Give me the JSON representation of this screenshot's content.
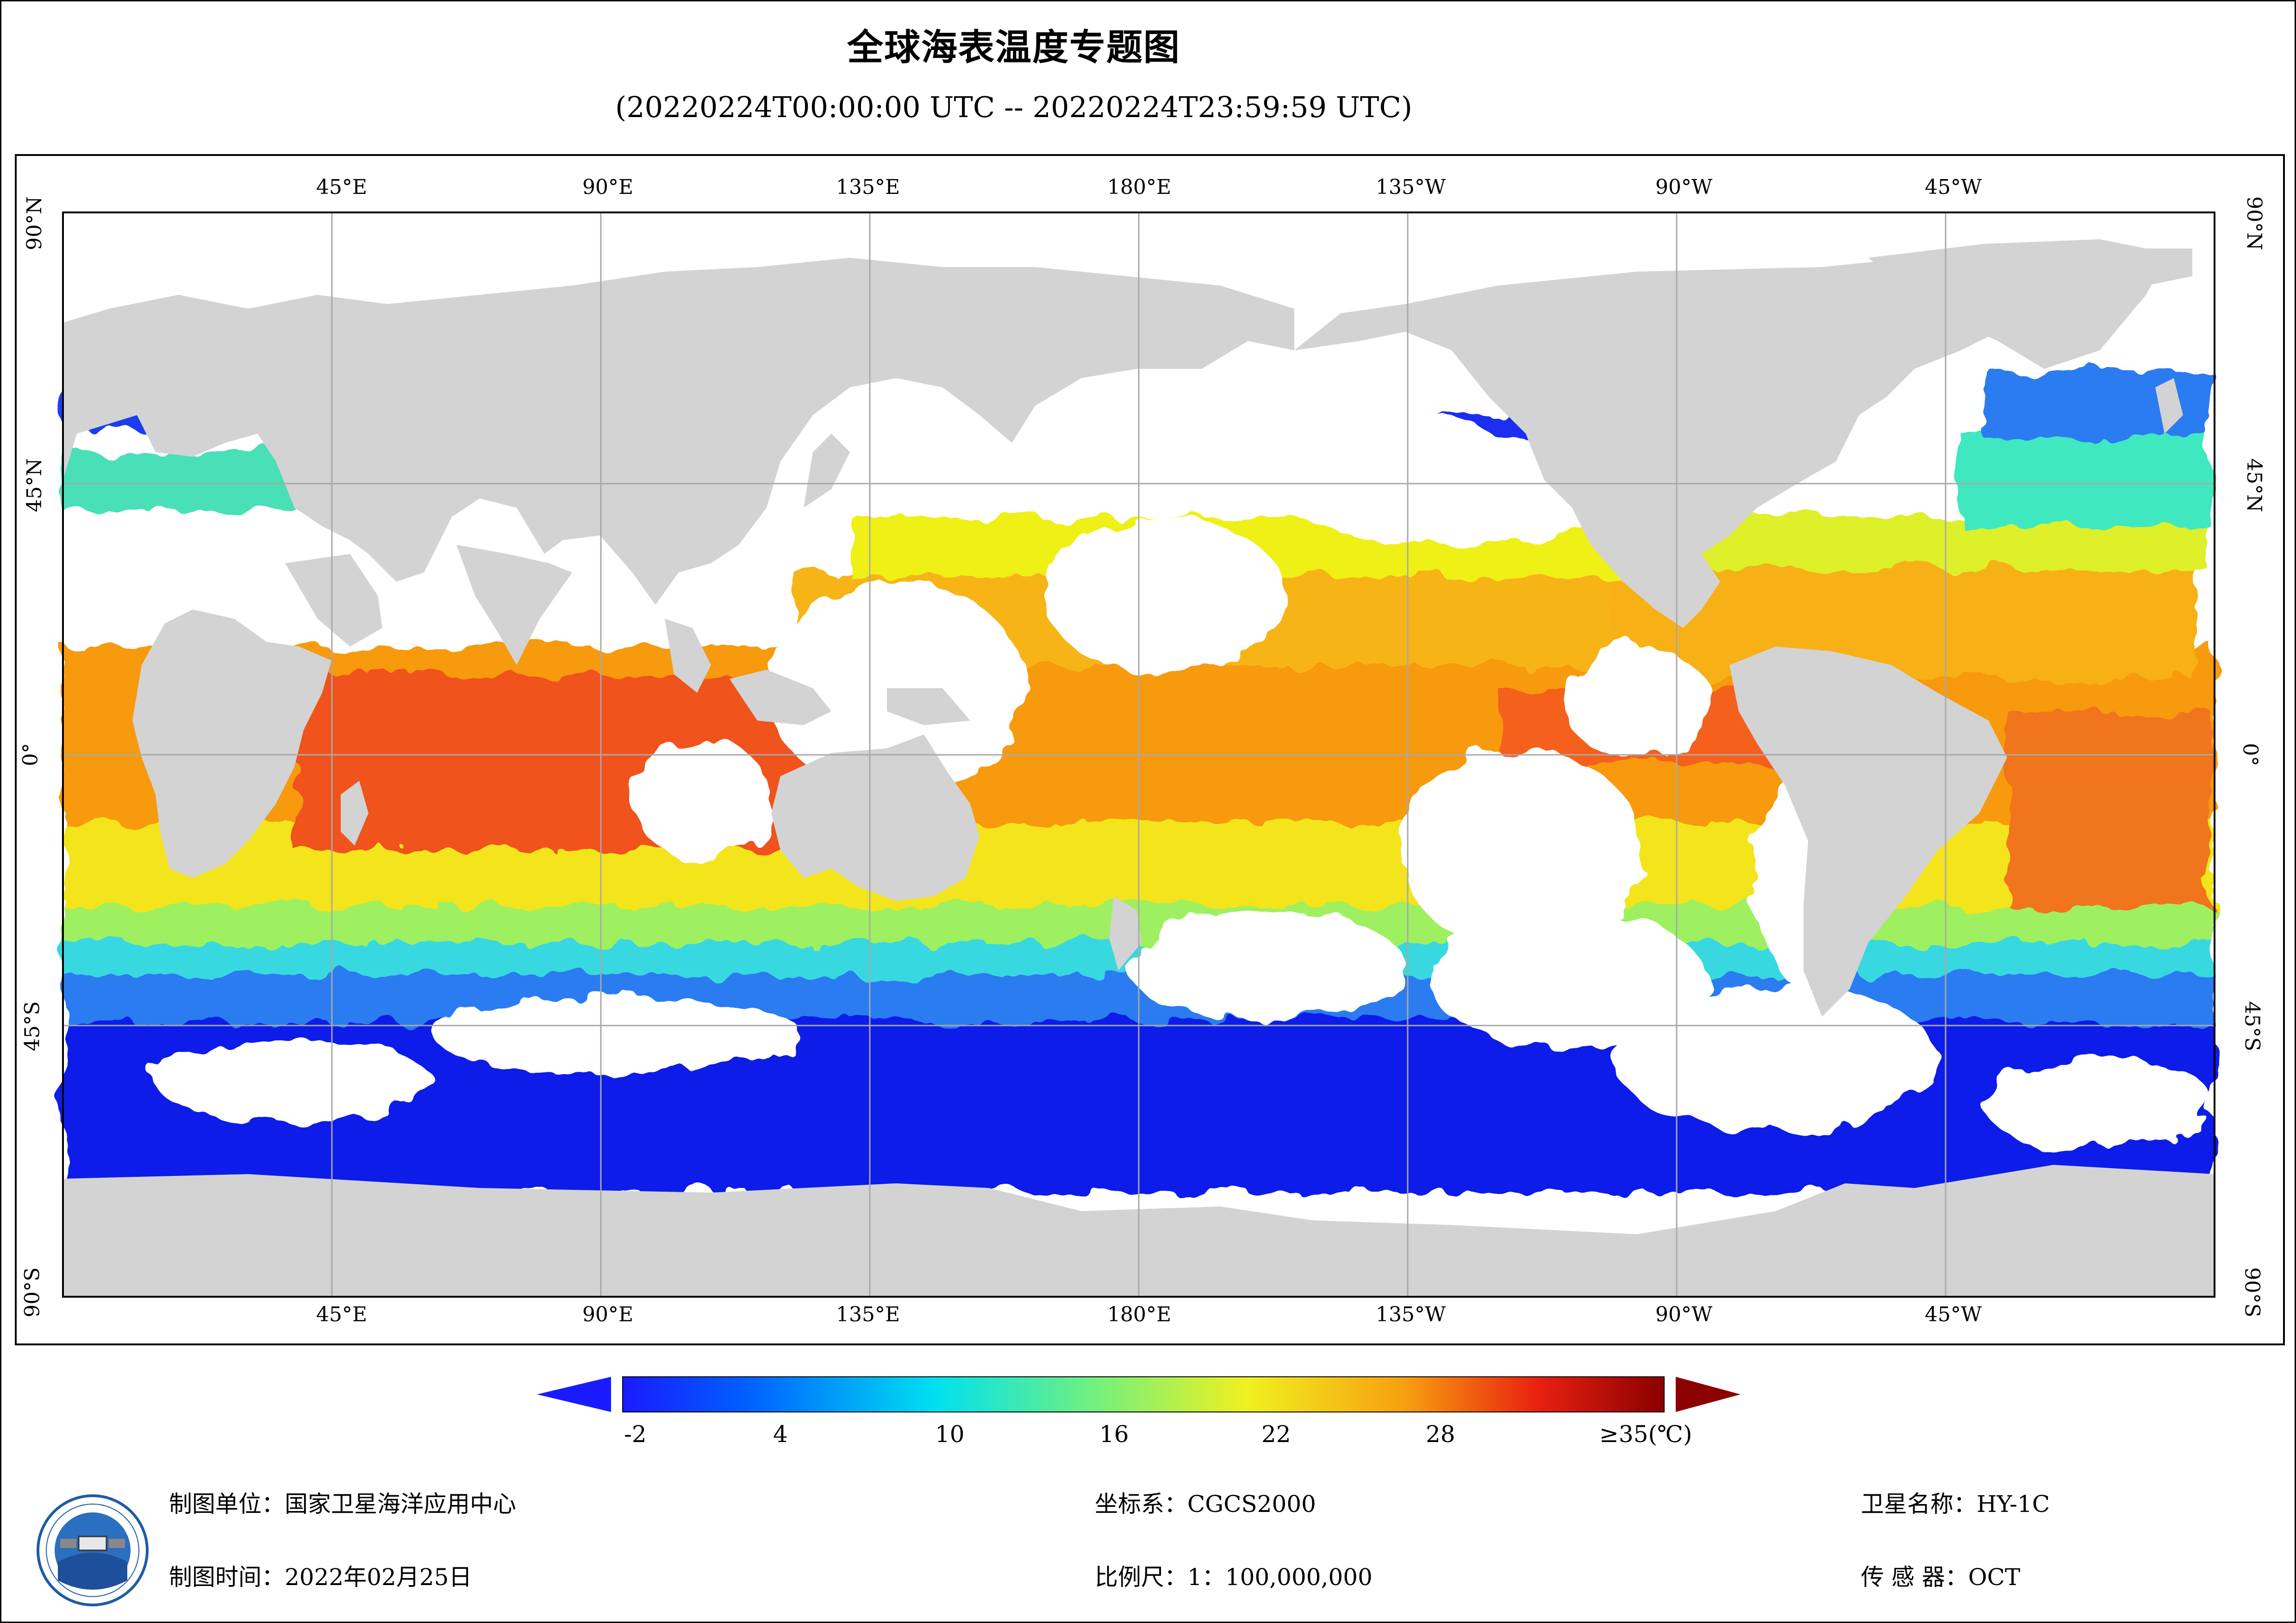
{
  "title": "全球海表温度专题图",
  "subtitle": "(20220224T00:00:00 UTC -- 20220224T23:59:59 UTC)",
  "map": {
    "top_lon_labels": [
      "45°E",
      "90°E",
      "135°E",
      "180°E",
      "135°W",
      "90°W",
      "45°W"
    ],
    "bottom_lon_labels": [
      "45°E",
      "90°E",
      "135°E",
      "180°E",
      "135°W",
      "90°W",
      "45°W"
    ],
    "lat_labels": [
      "90°N",
      "45°N",
      "0°",
      "45°S",
      "90°S"
    ],
    "land_color": "#d3d3d3",
    "cloud_color": "#ffffff",
    "grid_color": "#a9a9a9"
  },
  "legend": {
    "labels": [
      "-2",
      "4",
      "10",
      "16",
      "22",
      "28",
      "≥35(℃)"
    ],
    "min_value": -2,
    "max_value": 35,
    "unit": "℃",
    "colormap": "jet"
  },
  "footer": {
    "org_label": "制图单位：",
    "org_value": "国家卫星海洋应用中心",
    "date_label": "制图时间：",
    "date_value": "2022年02月25日",
    "crs_label": "坐标系：",
    "crs_value": "CGCS2000",
    "scale_label": "比例尺：",
    "scale_value": "1：100,000,000",
    "satellite_label": "卫星名称：",
    "satellite_value": "HY-1C",
    "sensor_label": "传 感 器：",
    "sensor_value": "OCT"
  }
}
